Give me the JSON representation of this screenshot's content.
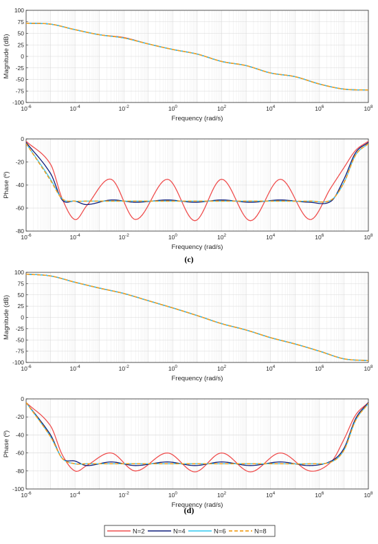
{
  "colors": {
    "N=2": "#ef4d4d",
    "N=4": "#0a1a7a",
    "N=6": "#2fc8f0",
    "N=8": "#f0a020"
  },
  "panel_labels": [
    "(c)",
    "(d)"
  ],
  "legend": [
    "N=2",
    "N=4",
    "N=6",
    "N=8"
  ],
  "chart_data": [
    {
      "type": "line",
      "panel": "c",
      "xlabel": "Frequency (rad/s)",
      "ylabel": "Magnitude (dB)",
      "xscale": "log",
      "xlim": [
        1e-06,
        100000000.0
      ],
      "ylim": [
        -100,
        100
      ],
      "xticks": [
        "10^-6",
        "10^-4",
        "10^-2",
        "10^0",
        "10^2",
        "10^4",
        "10^6",
        "10^8"
      ],
      "yticks": [
        100,
        75,
        50,
        25,
        0,
        -25,
        -50,
        -75,
        -100
      ],
      "grid": true,
      "x": [
        1e-06,
        1e-05,
        0.0001,
        0.001,
        0.01,
        0.1,
        1.0,
        10.0,
        100.0,
        1000.0,
        10000.0,
        100000.0,
        1000000.0,
        10000000.0,
        100000000.0
      ],
      "series": [
        {
          "name": "N=2",
          "values": [
            72,
            70,
            58,
            47,
            41,
            27,
            15,
            5,
            -11,
            -20,
            -36,
            -44,
            -60,
            -71,
            -73
          ]
        },
        {
          "name": "N=4",
          "values": [
            72,
            70,
            58,
            47,
            40,
            27,
            15,
            5,
            -11,
            -20,
            -36,
            -44,
            -60,
            -71,
            -73
          ]
        },
        {
          "name": "N=6",
          "values": [
            72,
            70,
            58,
            47,
            40,
            27,
            15,
            5,
            -11,
            -20,
            -36,
            -44,
            -60,
            -71,
            -73
          ]
        },
        {
          "name": "N=8",
          "values": [
            72,
            70,
            58,
            47,
            40,
            27,
            15,
            5,
            -11,
            -20,
            -36,
            -44,
            -60,
            -71,
            -73
          ]
        }
      ]
    },
    {
      "type": "line",
      "panel": "c",
      "xlabel": "Frequency (rad/s)",
      "ylabel": "Phase (º)",
      "xscale": "log",
      "xlim": [
        1e-06,
        100000000.0
      ],
      "ylim": [
        -80,
        0
      ],
      "xticks": [
        "10^-6",
        "10^-4",
        "10^-2",
        "10^0",
        "10^2",
        "10^4",
        "10^6",
        "10^8"
      ],
      "yticks": [
        0,
        -20,
        -40,
        -60,
        -80
      ],
      "grid": true,
      "x": [
        1e-06,
        1e-05,
        3e-05,
        0.0001,
        0.0003,
        0.003,
        0.03,
        0.6,
        8,
        100.0,
        1500.0,
        25000.0,
        400000.0,
        3000000.0,
        10000000.0,
        30000000.0,
        100000000.0
      ],
      "series": [
        {
          "name": "N=2",
          "values": [
            -2,
            -22,
            -52,
            -70,
            -58,
            -35,
            -70,
            -35,
            -71,
            -35,
            -71,
            -35,
            -70,
            -42,
            -25,
            -10,
            -2
          ]
        },
        {
          "name": "N=4",
          "values": [
            -3,
            -30,
            -53,
            -54,
            -57,
            -53,
            -55,
            -53,
            -55,
            -53,
            -55,
            -53,
            -55,
            -54,
            -35,
            -12,
            -3
          ]
        },
        {
          "name": "N=6",
          "values": [
            -4,
            -35,
            -52,
            -54,
            -54,
            -54,
            -54,
            -54,
            -54,
            -54,
            -54,
            -54,
            -54,
            -53,
            -38,
            -14,
            -4
          ]
        },
        {
          "name": "N=8",
          "values": [
            -4,
            -36,
            -52,
            -54,
            -54,
            -54,
            -54,
            -54,
            -54,
            -54,
            -54,
            -54,
            -54,
            -53,
            -38,
            -14,
            -4
          ]
        }
      ]
    },
    {
      "type": "line",
      "panel": "d",
      "xlabel": "Frequency (rad/s)",
      "ylabel": "Magnitude (dB)",
      "xscale": "log",
      "xlim": [
        1e-06,
        100000000.0
      ],
      "ylim": [
        -100,
        100
      ],
      "xticks": [
        "10^-6",
        "10^-4",
        "10^-2",
        "10^0",
        "10^2",
        "10^4",
        "10^6",
        "10^8"
      ],
      "yticks": [
        100,
        75,
        50,
        25,
        0,
        -25,
        -50,
        -75,
        -100
      ],
      "grid": true,
      "x": [
        1e-06,
        1e-05,
        0.0001,
        0.001,
        0.01,
        0.1,
        1.0,
        10.0,
        100.0,
        1000.0,
        10000.0,
        100000.0,
        1000000.0,
        10000000.0,
        100000000.0
      ],
      "series": [
        {
          "name": "N=2",
          "values": [
            96,
            92,
            78,
            65,
            53,
            37,
            21,
            4,
            -14,
            -28,
            -45,
            -59,
            -75,
            -92,
            -96
          ]
        },
        {
          "name": "N=4",
          "values": [
            96,
            92,
            78,
            65,
            53,
            37,
            21,
            4,
            -14,
            -28,
            -45,
            -59,
            -75,
            -92,
            -96
          ]
        },
        {
          "name": "N=6",
          "values": [
            96,
            92,
            78,
            65,
            53,
            37,
            21,
            4,
            -14,
            -28,
            -45,
            -59,
            -75,
            -92,
            -96
          ]
        },
        {
          "name": "N=8",
          "values": [
            96,
            92,
            78,
            65,
            53,
            37,
            21,
            4,
            -14,
            -28,
            -45,
            -59,
            -75,
            -92,
            -96
          ]
        }
      ]
    },
    {
      "type": "line",
      "panel": "d",
      "xlabel": "Frequency (rad/s)",
      "ylabel": "Phase (º)",
      "xscale": "log",
      "xlim": [
        1e-06,
        100000000.0
      ],
      "ylim": [
        -100,
        0
      ],
      "xticks": [
        "10^-6",
        "10^-4",
        "10^-2",
        "10^0",
        "10^2",
        "10^4",
        "10^6",
        "10^8"
      ],
      "yticks": [
        0,
        -20,
        -40,
        -60,
        -80,
        -100
      ],
      "grid": true,
      "x": [
        1e-06,
        1e-05,
        3e-05,
        0.0001,
        0.0003,
        0.003,
        0.03,
        0.6,
        8,
        100.0,
        1500.0,
        25000.0,
        400000.0,
        3000000.0,
        10000000.0,
        30000000.0,
        100000000.0
      ],
      "series": [
        {
          "name": "N=2",
          "values": [
            -4,
            -30,
            -62,
            -80,
            -74,
            -60,
            -80,
            -60,
            -81,
            -60,
            -81,
            -60,
            -80,
            -70,
            -45,
            -18,
            -4
          ]
        },
        {
          "name": "N=4",
          "values": [
            -4,
            -40,
            -66,
            -69,
            -74,
            -70,
            -74,
            -70,
            -74,
            -70,
            -74,
            -70,
            -74,
            -69,
            -55,
            -22,
            -4
          ]
        },
        {
          "name": "N=6",
          "values": [
            -4,
            -42,
            -66,
            -72,
            -72,
            -72,
            -72,
            -72,
            -72,
            -72,
            -72,
            -72,
            -72,
            -70,
            -57,
            -24,
            -5
          ]
        },
        {
          "name": "N=8",
          "values": [
            -4,
            -42,
            -66,
            -72,
            -72,
            -72,
            -72,
            -72,
            -72,
            -72,
            -72,
            -72,
            -72,
            -70,
            -57,
            -24,
            -5
          ]
        }
      ]
    }
  ]
}
